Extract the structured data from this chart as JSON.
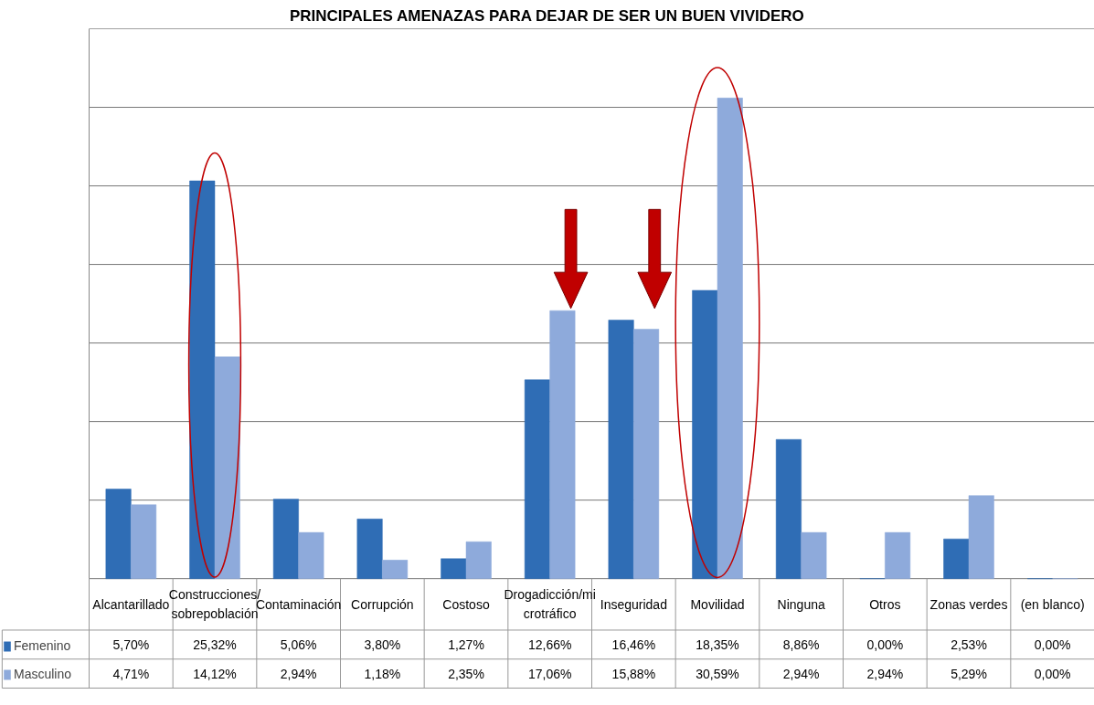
{
  "chart_data": {
    "type": "bar",
    "title": "PRINCIPALES AMENAZAS PARA DEJAR DE SER UN BUEN VIVIDERO",
    "categories": [
      "Alcantarillado",
      "Construcciones/\nsobrepoblación",
      "Contaminación",
      "Corrupción",
      "Costoso",
      "Drogadicción/mi\ncrotráfico",
      "Inseguridad",
      "Movilidad",
      "Ninguna",
      "Otros",
      "Zonas verdes",
      "(en blanco)"
    ],
    "series": [
      {
        "name": "Femenino",
        "color": "#2f6db5",
        "values": [
          5.7,
          25.32,
          5.06,
          3.8,
          1.27,
          12.66,
          16.46,
          18.35,
          8.86,
          0.0,
          2.53,
          0.0
        ],
        "value_labels": [
          "5,70%",
          "25,32%",
          "5,06%",
          "3,80%",
          "1,27%",
          "12,66%",
          "16,46%",
          "18,35%",
          "8,86%",
          "0,00%",
          "2,53%",
          "0,00%"
        ]
      },
      {
        "name": "Masculino",
        "color": "#8eaadb",
        "values": [
          4.71,
          14.12,
          2.94,
          1.18,
          2.35,
          17.06,
          15.88,
          30.59,
          2.94,
          2.94,
          5.29,
          0.0
        ],
        "value_labels": [
          "4,71%",
          "14,12%",
          "2,94%",
          "1,18%",
          "2,35%",
          "17,06%",
          "15,88%",
          "30,59%",
          "2,94%",
          "2,94%",
          "5,29%",
          "0,00%"
        ]
      }
    ],
    "ylim": [
      0,
      35
    ],
    "yticks": [
      {
        "value": 0,
        "label": null
      },
      {
        "value": 5,
        "label": null
      },
      {
        "value": 10,
        "label": null
      },
      {
        "value": 15,
        "label": null
      },
      {
        "value": 20,
        "label": null
      },
      {
        "value": 25,
        "label": null
      },
      {
        "value": 30,
        "label": null
      },
      {
        "value": 35,
        "label": null
      }
    ],
    "grid": "y",
    "legend": "bottom left",
    "tick_labels": false
  }
}
